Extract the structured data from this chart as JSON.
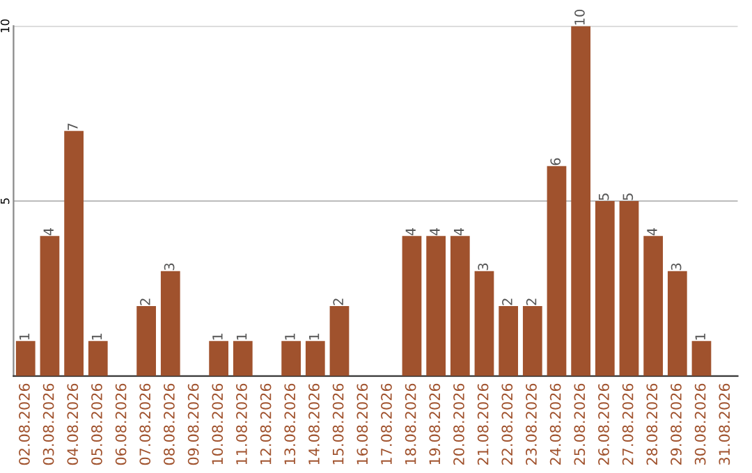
{
  "chart_data": {
    "type": "bar",
    "categories": [
      "02.08.2026",
      "03.08.2026",
      "04.08.2026",
      "05.08.2026",
      "06.08.2026",
      "07.08.2026",
      "08.08.2026",
      "09.08.2026",
      "10.08.2026",
      "11.08.2026",
      "12.08.2026",
      "13.08.2026",
      "14.08.2026",
      "15.08.2026",
      "16.08.2026",
      "17.08.2026",
      "18.08.2026",
      "19.08.2026",
      "20.08.2026",
      "21.08.2026",
      "22.08.2026",
      "23.08.2026",
      "24.08.2026",
      "25.08.2026",
      "26.08.2026",
      "27.08.2026",
      "28.08.2026",
      "29.08.2026",
      "30.08.2026",
      "31.08.2026"
    ],
    "values": [
      1,
      4,
      7,
      1,
      0,
      2,
      3,
      0,
      1,
      1,
      0,
      1,
      1,
      2,
      0,
      0,
      4,
      4,
      4,
      3,
      2,
      2,
      6,
      10,
      5,
      5,
      4,
      3,
      1,
      0
    ],
    "value_labels": [
      "1",
      "4",
      "7",
      "1",
      null,
      "2",
      "3",
      null,
      "1",
      "1",
      null,
      "1",
      "1",
      "2",
      null,
      null,
      "4",
      "4",
      "4",
      "3",
      "2",
      "2",
      "6",
      "10",
      "5",
      "5",
      "4",
      "3",
      "1",
      null
    ],
    "color": "#a0522d",
    "ylim": [
      0,
      10
    ],
    "yticks": [
      5,
      10
    ],
    "grid": "y"
  }
}
